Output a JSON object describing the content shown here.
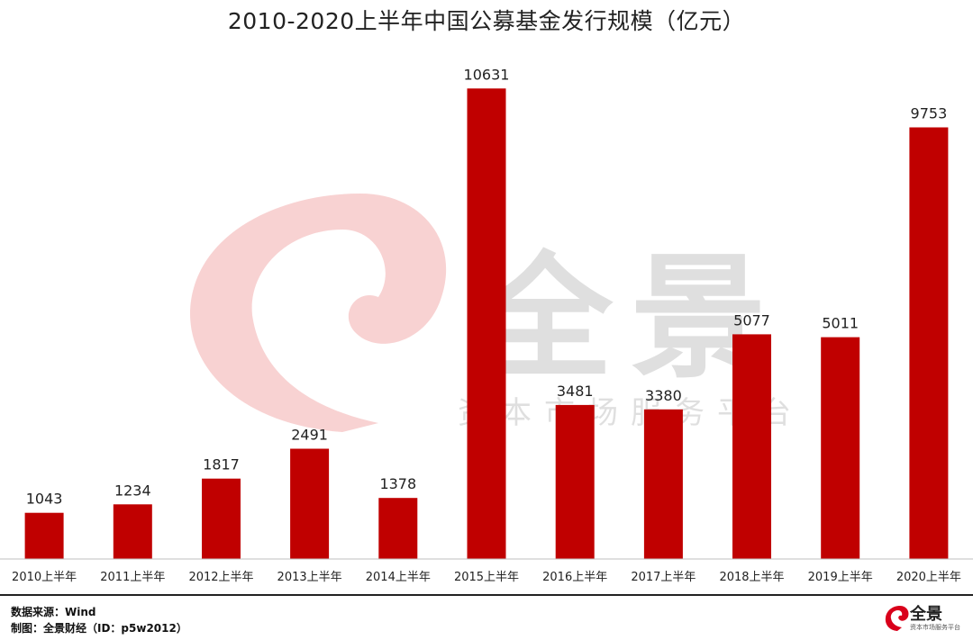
{
  "chart_data": {
    "type": "bar",
    "title": "2010-2020上半年中国公募基金发行规模（亿元）",
    "categories": [
      "2010上半年",
      "2011上半年",
      "2012上半年",
      "2013上半年",
      "2014上半年",
      "2015上半年",
      "2016上半年",
      "2017上半年",
      "2018上半年",
      "2019上半年",
      "2020上半年"
    ],
    "values": [
      1043,
      1234,
      1817,
      2491,
      1378,
      10631,
      3481,
      3380,
      5077,
      5011,
      9753
    ],
    "xlabel": "",
    "ylabel": "",
    "ylim": [
      0,
      12000
    ],
    "bar_color": "#c00000",
    "grid": false,
    "legend": "none"
  },
  "watermark": {
    "brand": "全景",
    "tagline": "资本市场服务平台"
  },
  "footer": {
    "source": "数据来源：Wind",
    "credit": "制图：全景财经（ID：p5w2012）",
    "logo_text": "全景",
    "logo_sub": "资本市场服务平台"
  }
}
